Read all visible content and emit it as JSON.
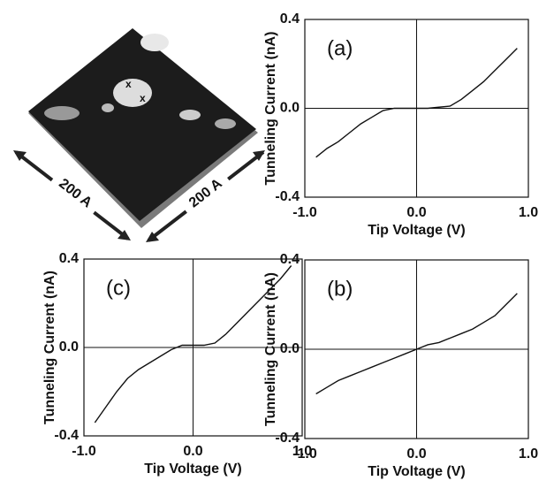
{
  "image": {
    "labels": [
      "200 A",
      "200 A"
    ]
  },
  "chart_data": [
    {
      "type": "line",
      "annotation": "(a)",
      "x_label": "Tip Voltage (V)",
      "y_label": "Tunneling Current (nA)",
      "x": [
        -0.9,
        -0.8,
        -0.7,
        -0.6,
        -0.5,
        -0.4,
        -0.3,
        -0.2,
        -0.1,
        0,
        0.1,
        0.2,
        0.3,
        0.4,
        0.5,
        0.6,
        0.7,
        0.8,
        0.9
      ],
      "series": [
        {
          "color": "#111111",
          "values": [
            -0.22,
            -0.18,
            -0.15,
            -0.11,
            -0.07,
            -0.04,
            -0.01,
            0.0,
            0.0,
            0.0,
            0.0,
            0.005,
            0.01,
            0.04,
            0.08,
            0.12,
            0.17,
            0.22,
            0.27
          ]
        }
      ],
      "xlim": [
        -1.0,
        1.0
      ],
      "ylim": [
        -0.4,
        0.4
      ],
      "xticks": [
        {
          "value": -1.0,
          "label": "-1.0"
        },
        {
          "value": 0,
          "label": "0.0"
        },
        {
          "value": 1.0,
          "label": "1.0"
        }
      ],
      "yticks": [
        -0.4,
        {
          "value": 0,
          "label": "0.0"
        },
        0.4
      ]
    },
    {
      "type": "line",
      "annotation": "(c)",
      "x_label": "Tip Voltage (V)",
      "y_label": "Tunneling Current (nA)",
      "x": [
        -0.9,
        -0.8,
        -0.7,
        -0.6,
        -0.5,
        -0.4,
        -0.3,
        -0.2,
        -0.1,
        0,
        0.1,
        0.2,
        0.3,
        0.4,
        0.5,
        0.6,
        0.7,
        0.8,
        0.9
      ],
      "series": [
        {
          "color": "#111111",
          "values": [
            -0.34,
            -0.27,
            -0.2,
            -0.14,
            -0.1,
            -0.07,
            -0.04,
            -0.01,
            0.01,
            0.01,
            0.01,
            0.02,
            0.06,
            0.11,
            0.16,
            0.21,
            0.26,
            0.31,
            0.37
          ]
        }
      ],
      "xlim": [
        -1.0,
        1.0
      ],
      "ylim": [
        -0.4,
        0.4
      ],
      "xticks": [
        {
          "value": -1.0,
          "label": "-1.0"
        },
        {
          "value": 0,
          "label": "0.0"
        },
        {
          "value": 1.0,
          "label": "1.0"
        }
      ],
      "yticks": [
        -0.4,
        {
          "value": 0,
          "label": "0.0"
        },
        0.4
      ]
    },
    {
      "type": "line",
      "annotation": "(b)",
      "x_label": "Tip Voltage (V)",
      "y_label": "Tunneling Current (nA)",
      "x": [
        -0.9,
        -0.8,
        -0.7,
        -0.6,
        -0.5,
        -0.4,
        -0.3,
        -0.2,
        -0.1,
        0,
        0.1,
        0.2,
        0.3,
        0.4,
        0.5,
        0.6,
        0.7,
        0.8,
        0.9
      ],
      "series": [
        {
          "color": "#111111",
          "values": [
            -0.2,
            -0.17,
            -0.14,
            -0.12,
            -0.1,
            -0.08,
            -0.06,
            -0.04,
            -0.02,
            0.0,
            0.02,
            0.03,
            0.05,
            0.07,
            0.09,
            0.12,
            0.15,
            0.2,
            0.25
          ]
        }
      ],
      "xlim": [
        -1.0,
        1.0
      ],
      "ylim": [
        -0.4,
        0.4
      ],
      "xticks": [
        {
          "value": -1.0,
          "label": "-1.0"
        },
        {
          "value": 0,
          "label": "0.0"
        },
        {
          "value": 1.0,
          "label": "1.0"
        }
      ],
      "yticks": [
        -0.4,
        {
          "value": 0,
          "label": "0.0"
        },
        0.4
      ]
    }
  ]
}
